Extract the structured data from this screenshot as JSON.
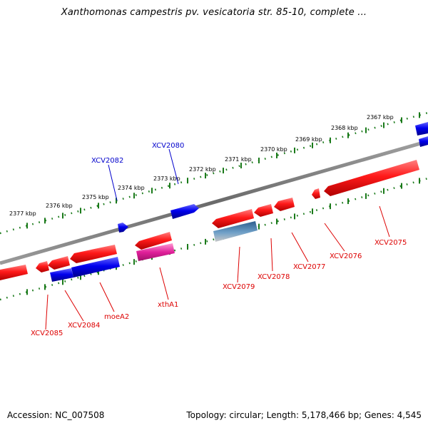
{
  "title": "Xanthomonas campestris pv. vesicatoria str. 85-10, complete ...",
  "footer": {
    "accession": "Accession: NC_007508",
    "summary": "Topology: circular; Length: 5,178,466 bp; Genes: 4,545"
  },
  "colors": {
    "forward_label": "#0000cc",
    "reverse_label": "#dd0000",
    "tick": "#1a7a1a",
    "backbone": "#7a7a7a"
  },
  "ticks": [
    "2367 kbp",
    "2368 kbp",
    "2369 kbp",
    "2370 kbp",
    "2371 kbp",
    "2372 kbp",
    "2373 kbp",
    "2374 kbp",
    "2375 kbp",
    "2376 kbp",
    "2377 kbp"
  ],
  "genes_top": [
    "XCV2082",
    "XCV2080"
  ],
  "genes_bottom": [
    "XCV2075",
    "XCV2076",
    "XCV2077",
    "XCV2078",
    "XCV2079",
    "xthA1",
    "moeA2",
    "XCV2084",
    "XCV2085"
  ]
}
